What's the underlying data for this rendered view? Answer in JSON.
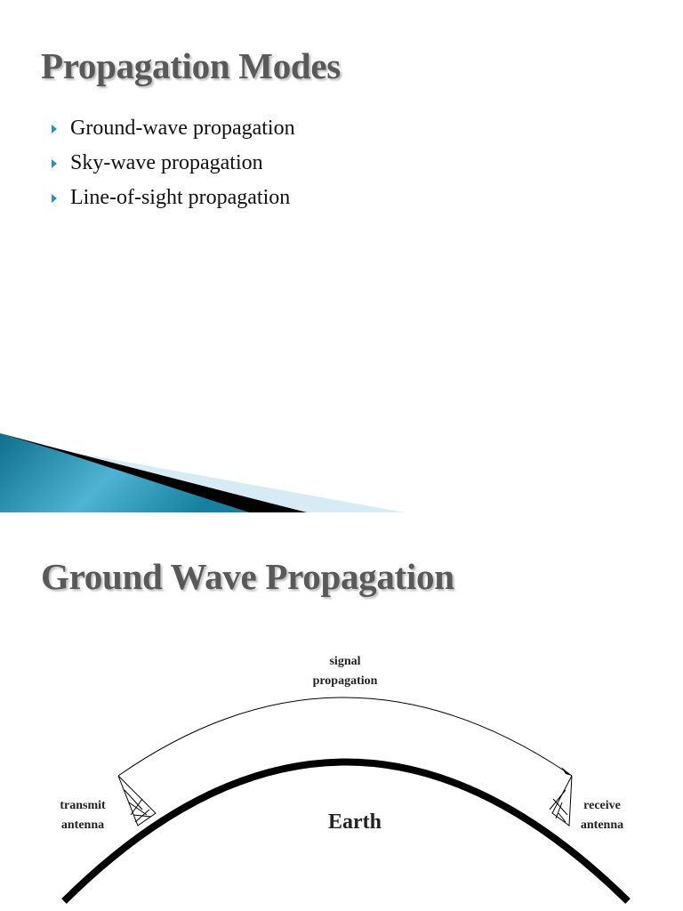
{
  "slide1": {
    "title": "Propagation Modes",
    "bullets": [
      "Ground-wave propagation",
      "Sky-wave propagation",
      "Line-of-sight propagation"
    ],
    "accent_color": "#2a93b3"
  },
  "slide2": {
    "title": "Ground Wave Propagation",
    "diagram": {
      "signal_label_1": "signal",
      "signal_label_2": "propagation",
      "transmit_label_1": "transmit",
      "transmit_label_2": "antenna",
      "receive_label_1": "receive",
      "receive_label_2": "antenna",
      "earth_label": "Earth"
    }
  }
}
